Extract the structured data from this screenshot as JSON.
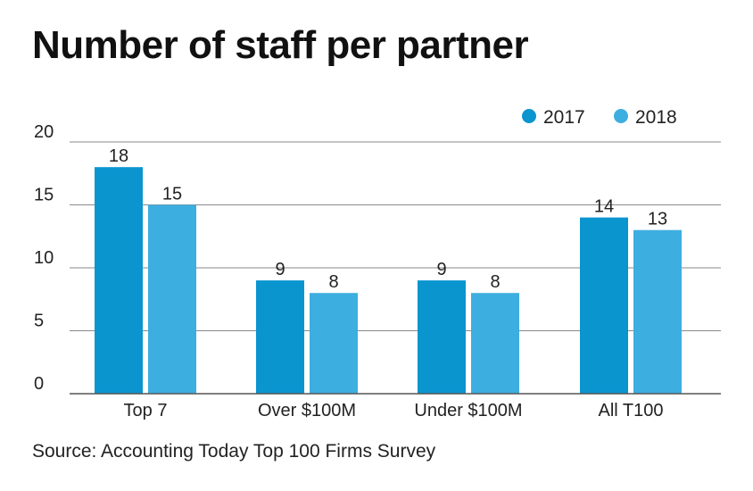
{
  "chart_data": {
    "type": "bar",
    "title": "Number of staff per partner",
    "source": "Source: Accounting Today Top 100 Firms Survey",
    "categories": [
      "Top 7",
      "Over $100M",
      "Under $100M",
      "All T100"
    ],
    "series": [
      {
        "name": "2017",
        "values": [
          18,
          9,
          9,
          14
        ],
        "color": "#0a95cf"
      },
      {
        "name": "2018",
        "values": [
          15,
          8,
          8,
          13
        ],
        "color": "#3daee0"
      }
    ],
    "yticks": [
      0,
      5,
      10,
      15,
      20
    ],
    "ylim": [
      0,
      20
    ],
    "xlabel": "",
    "ylabel": "",
    "grid": true,
    "legend": "top-right"
  }
}
